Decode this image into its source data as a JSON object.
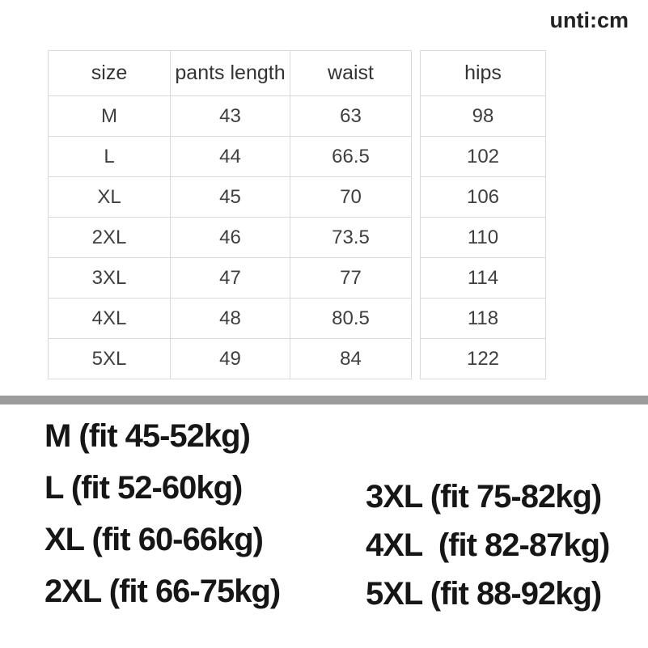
{
  "unit_label": "unti:cm",
  "size_table": {
    "headers": [
      "size",
      "pants length",
      "waist",
      "hips"
    ],
    "rows": [
      [
        "M",
        "43",
        "63",
        "98"
      ],
      [
        "L",
        "44",
        "66.5",
        "102"
      ],
      [
        "XL",
        "45",
        "70",
        "106"
      ],
      [
        "2XL",
        "46",
        "73.5",
        "110"
      ],
      [
        "3XL",
        "47",
        "77",
        "114"
      ],
      [
        "4XL",
        "48",
        "80.5",
        "118"
      ],
      [
        "5XL",
        "49",
        "84",
        "122"
      ]
    ]
  },
  "weight_fit": {
    "left_column": [
      "M (fit 45-52kg)",
      "L (fit 52-60kg)",
      "XL (fit 60-66kg)",
      "2XL (fit 66-75kg)"
    ],
    "right_column": [
      "3XL (fit 75-82kg)",
      "4XL  (fit 82-87kg)",
      "5XL (fit 88-92kg)"
    ]
  },
  "colors": {
    "background": "#ffffff",
    "table_border": "#dadada",
    "table_text": "#3f3f3f",
    "fit_text": "#161616",
    "divider_bar": "#9c9c9c",
    "unit_text": "#222222"
  }
}
